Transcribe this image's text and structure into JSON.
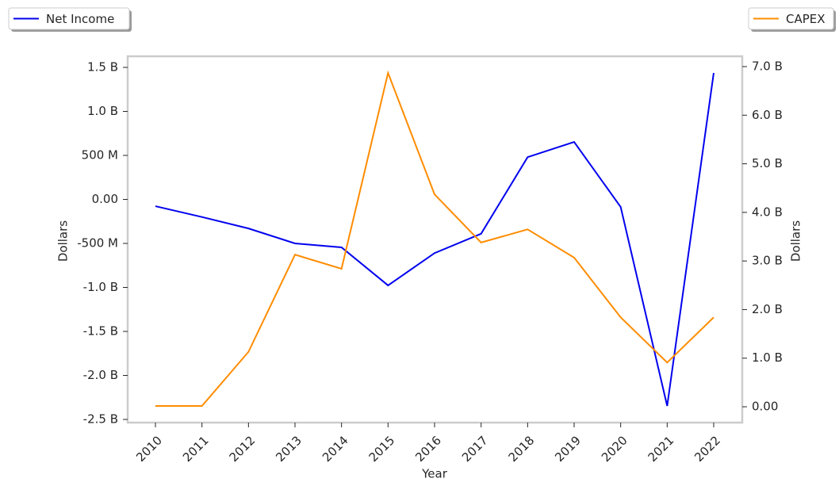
{
  "chart_data": {
    "type": "line",
    "x_label": "Year",
    "y_label": "Dollars",
    "y2_label": "Dollars",
    "categories": [
      "2010",
      "2011",
      "2012",
      "2013",
      "2014",
      "2015",
      "2016",
      "2017",
      "2018",
      "2019",
      "2020",
      "2021",
      "2022"
    ],
    "series": [
      {
        "name": "Net Income",
        "color": "#0000ee",
        "axis": "y",
        "legend": "upper left",
        "values": [
          -77000000,
          -200000000,
          -330000000,
          -500000000,
          -545000000,
          -977000000,
          -610000000,
          -390000000,
          480000000,
          653000000,
          -86000000,
          -2347000000,
          1437000000
        ]
      },
      {
        "name": "CAPEX",
        "color": "#ff8c00",
        "axis": "y2",
        "legend": "upper right",
        "values": [
          16000000,
          16000000,
          1130000000,
          3130000000,
          2840000000,
          6870000000,
          4370000000,
          3380000000,
          3650000000,
          3070000000,
          1840000000,
          910000000,
          1840000000
        ]
      }
    ],
    "ylim": [
      -2536000000,
      1626000000
    ],
    "yticks": [
      {
        "value": 1500000000,
        "label": "1.5 B"
      },
      {
        "value": 1000000000,
        "label": "1.0 B"
      },
      {
        "value": 500000000,
        "label": "500 M"
      },
      {
        "value": 0,
        "label": "0.00"
      },
      {
        "value": -500000000,
        "label": "-500 M"
      },
      {
        "value": -1000000000,
        "label": "-1.0 B"
      },
      {
        "value": -1500000000,
        "label": "-1.5 B"
      },
      {
        "value": -2000000000,
        "label": "-2.0 B"
      },
      {
        "value": -2500000000,
        "label": "-2.5 B"
      }
    ],
    "y2lim": [
      -326000000,
      7212000000
    ],
    "y2ticks": [
      {
        "value": 7000000000,
        "label": "7.0 B"
      },
      {
        "value": 6000000000,
        "label": "6.0 B"
      },
      {
        "value": 5000000000,
        "label": "5.0 B"
      },
      {
        "value": 4000000000,
        "label": "4.0 B"
      },
      {
        "value": 3000000000,
        "label": "3.0 B"
      },
      {
        "value": 2000000000,
        "label": "2.0 B"
      },
      {
        "value": 1000000000,
        "label": "1.0 B"
      },
      {
        "value": 0,
        "label": "0.00"
      }
    ],
    "grid": false
  }
}
